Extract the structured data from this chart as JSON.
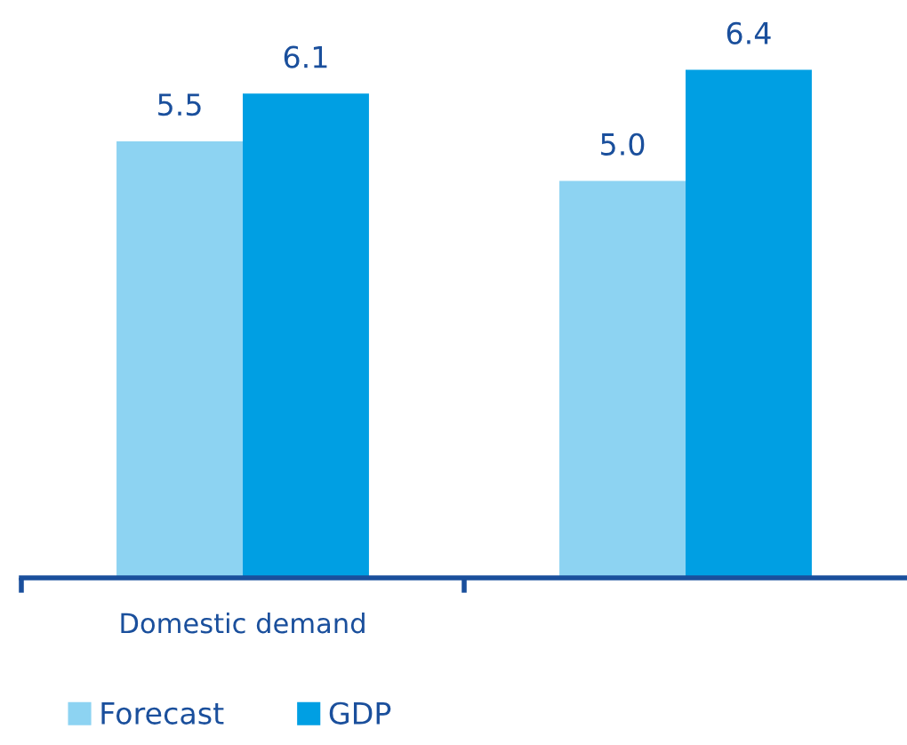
{
  "chart_data": {
    "type": "bar",
    "categories": [
      "Domestic demand",
      null
    ],
    "series": [
      {
        "name": "Forecast",
        "color": "#8dd3f2",
        "values": [
          5.5,
          5.0
        ],
        "value_labels": [
          "5.5",
          "5.0"
        ]
      },
      {
        "name": "GDP",
        "color": "#009fe3",
        "values": [
          6.1,
          6.4
        ],
        "value_labels": [
          "6.1",
          "6.4"
        ]
      }
    ],
    "legend": "bottom left",
    "grid": false,
    "tick_labels": "x"
  }
}
